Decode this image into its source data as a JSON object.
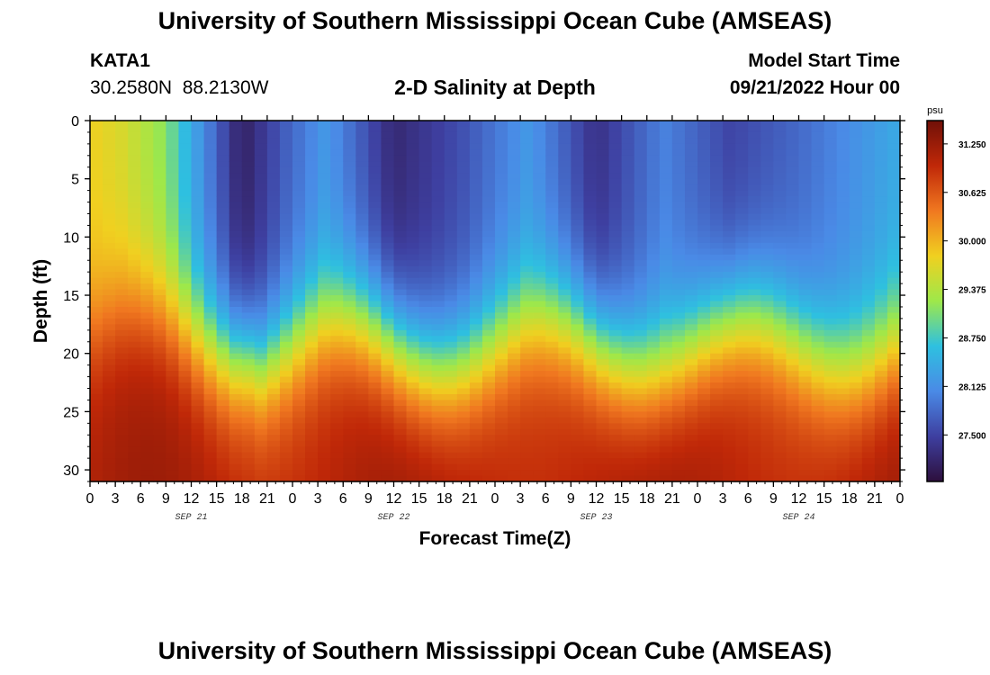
{
  "header": {
    "title": "University of Southern Mississippi Ocean Cube (AMSEAS)",
    "station": "KATA1",
    "coords": "30.2580N  88.2130W",
    "plot_title": "2-D Salinity at Depth",
    "model_label": "Model Start Time",
    "model_time": "09/21/2022 Hour 00"
  },
  "footer": {
    "repeat_title": "University of Southern Mississippi Ocean Cube (AMSEAS)"
  },
  "chart_data": {
    "type": "heatmap",
    "title": "2-D Salinity at Depth",
    "xlabel": "Forecast Time(Z)",
    "ylabel": "Depth (ft)",
    "x_tick_labels": [
      "0",
      "3",
      "6",
      "9",
      "12",
      "15",
      "18",
      "21",
      "0",
      "3",
      "6",
      "9",
      "12",
      "15",
      "18",
      "21",
      "0",
      "3",
      "6",
      "9",
      "12",
      "15",
      "18",
      "21",
      "0",
      "3",
      "6",
      "9",
      "12",
      "15",
      "18",
      "21",
      "0"
    ],
    "date_labels": [
      "SEP 21",
      "SEP 22",
      "SEP 23",
      "SEP 24"
    ],
    "xlim_hours": [
      0,
      96
    ],
    "y_ticks": [
      0,
      5,
      10,
      15,
      20,
      25,
      30
    ],
    "ylim_ft": [
      0,
      31
    ],
    "colorbar": {
      "unit": "psu",
      "tick_labels": [
        "31.250",
        "30.625",
        "30.000",
        "29.375",
        "28.750",
        "28.125",
        "27.500"
      ],
      "tick_values": [
        31.25,
        30.625,
        30.0,
        29.375,
        28.75,
        28.125,
        27.5
      ],
      "range": [
        26.9,
        31.55
      ],
      "colors": [
        "#2d0f3c",
        "#3e3fa0",
        "#4a8ae6",
        "#2ec0e0",
        "#9ee84a",
        "#f0d020",
        "#f07820",
        "#c02808",
        "#701008"
      ]
    },
    "surface_salinity_profile": [
      {
        "hour": 0,
        "psu": 29.8
      },
      {
        "hour": 4,
        "psu": 29.6
      },
      {
        "hour": 9,
        "psu": 29.1
      },
      {
        "hour": 12,
        "psu": 28.4
      },
      {
        "hour": 18,
        "psu": 27.1
      },
      {
        "hour": 23,
        "psu": 27.7
      },
      {
        "hour": 28,
        "psu": 28.2
      },
      {
        "hour": 36,
        "psu": 27.2
      },
      {
        "hour": 44,
        "psu": 27.6
      },
      {
        "hour": 52,
        "psu": 28.2
      },
      {
        "hour": 60,
        "psu": 27.3
      },
      {
        "hour": 68,
        "psu": 28.0
      },
      {
        "hour": 76,
        "psu": 27.5
      },
      {
        "hour": 84,
        "psu": 27.8
      },
      {
        "hour": 96,
        "psu": 28.4
      }
    ]
  }
}
